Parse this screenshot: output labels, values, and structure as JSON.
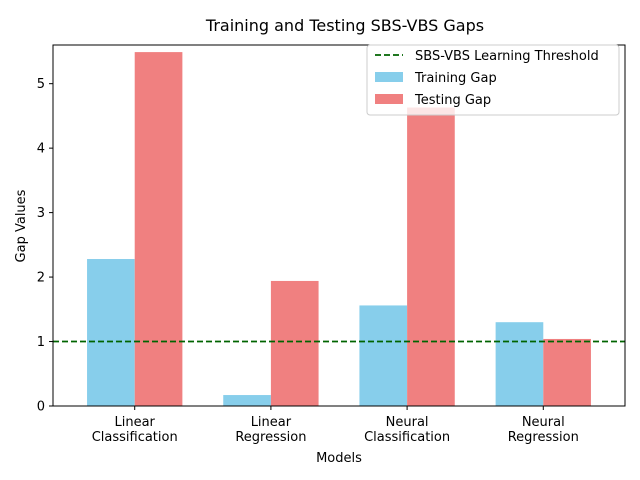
{
  "chart_data": {
    "type": "bar",
    "title": "Training and Testing SBS-VBS Gaps",
    "xlabel": "Models",
    "ylabel": "Gap Values",
    "categories": [
      [
        "Linear",
        "Classification"
      ],
      [
        "Linear",
        "Regression"
      ],
      [
        "Neural",
        "Classification"
      ],
      [
        "Neural",
        "Regression"
      ]
    ],
    "series": [
      {
        "name": "Training Gap",
        "color": "#87ceeb",
        "values": [
          2.28,
          0.17,
          1.56,
          1.3
        ]
      },
      {
        "name": "Testing Gap",
        "color": "#f08080",
        "values": [
          5.49,
          1.94,
          4.63,
          1.04
        ]
      }
    ],
    "reference_line": {
      "name": "SBS-VBS Learning Threshold",
      "value": 1.0,
      "color": "#006400",
      "style": "dashed"
    },
    "ylim": [
      0,
      5.6
    ],
    "yticks": [
      0,
      1,
      2,
      3,
      4,
      5
    ],
    "legend_position": "top-right",
    "grid": false
  }
}
